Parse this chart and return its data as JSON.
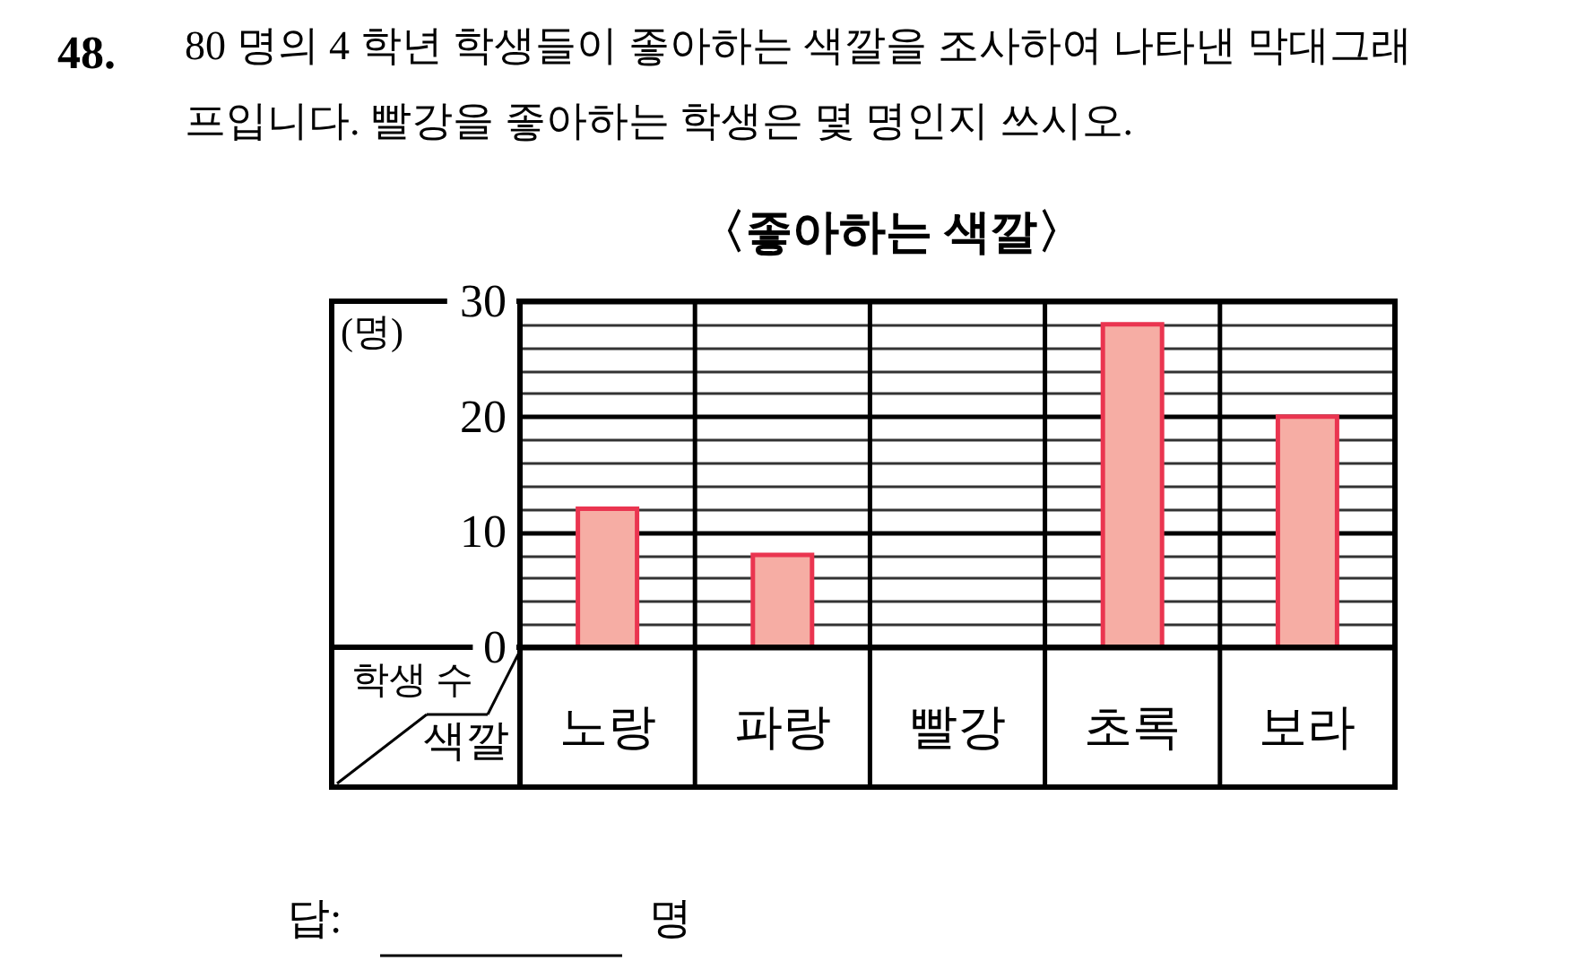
{
  "chart_data": {
    "type": "bar",
    "title": "〈좋아하는 색깔〉",
    "xlabel": "색깔",
    "ylabel": "학생 수",
    "annotations": [
      "48.",
      "80 명의 4 학년 학생들이 좋아하는 색깔을 조사하여 나타낸 막대그래\n프입니다. 빨강을 좋아하는 학생은 몇 명인지 쓰시오.",
      "(명)",
      "답:",
      "명"
    ],
    "categories": [
      "노랑",
      "파랑",
      "빨강",
      "초록",
      "보라"
    ],
    "values": [
      12,
      8,
      null,
      28,
      20
    ],
    "color": "#f6ada4",
    "ylim": [
      0,
      30
    ],
    "yticks": [
      0,
      {
        "value": 2,
        "label": null
      },
      {
        "value": 4,
        "label": null
      },
      {
        "value": 6,
        "label": null
      },
      {
        "value": 8,
        "label": null
      },
      10,
      {
        "value": 12,
        "label": null
      },
      {
        "value": 14,
        "label": null
      },
      {
        "value": 16,
        "label": null
      },
      {
        "value": 18,
        "label": null
      },
      20,
      {
        "value": 22,
        "label": null
      },
      {
        "value": 24,
        "label": null
      },
      {
        "value": 26,
        "label": null
      },
      {
        "value": 28,
        "label": null
      },
      30
    ],
    "grid": true
  }
}
